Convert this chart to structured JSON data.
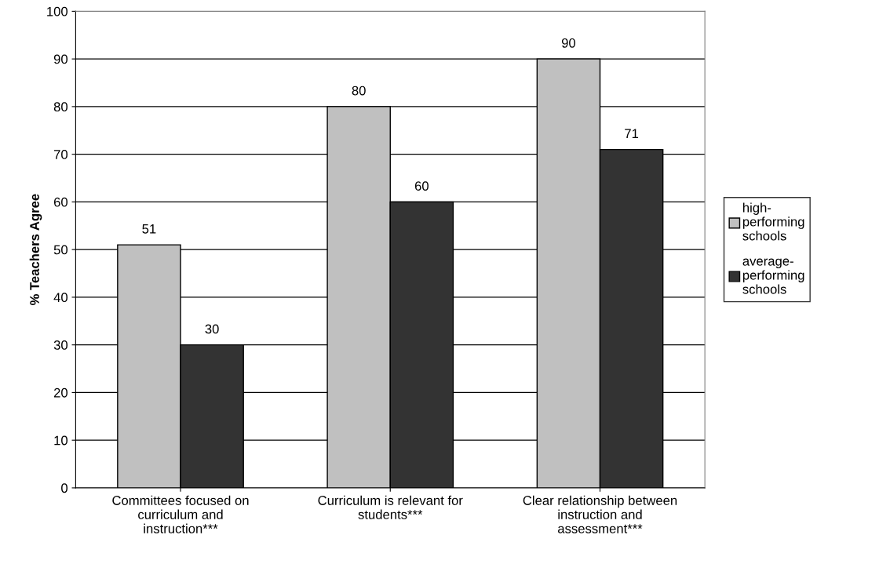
{
  "chart_data": {
    "type": "bar",
    "ylabel": "% Teachers Agree",
    "categories": [
      "Committees focused on curriculum and instruction***",
      "Curriculum is relevant for students***",
      "Clear relationship between instruction and assessment***"
    ],
    "series": [
      {
        "name": "high-performing schools",
        "color": "#c0c0c0",
        "values": [
          51,
          80,
          90
        ]
      },
      {
        "name": "average-performing schools",
        "color": "#333333",
        "values": [
          30,
          60,
          71
        ]
      }
    ],
    "ylim": [
      0,
      100
    ],
    "yticks": [
      0,
      10,
      20,
      30,
      40,
      50,
      60,
      70,
      80,
      90,
      100
    ],
    "grid": "y",
    "legend": "right",
    "data_labels": true
  }
}
